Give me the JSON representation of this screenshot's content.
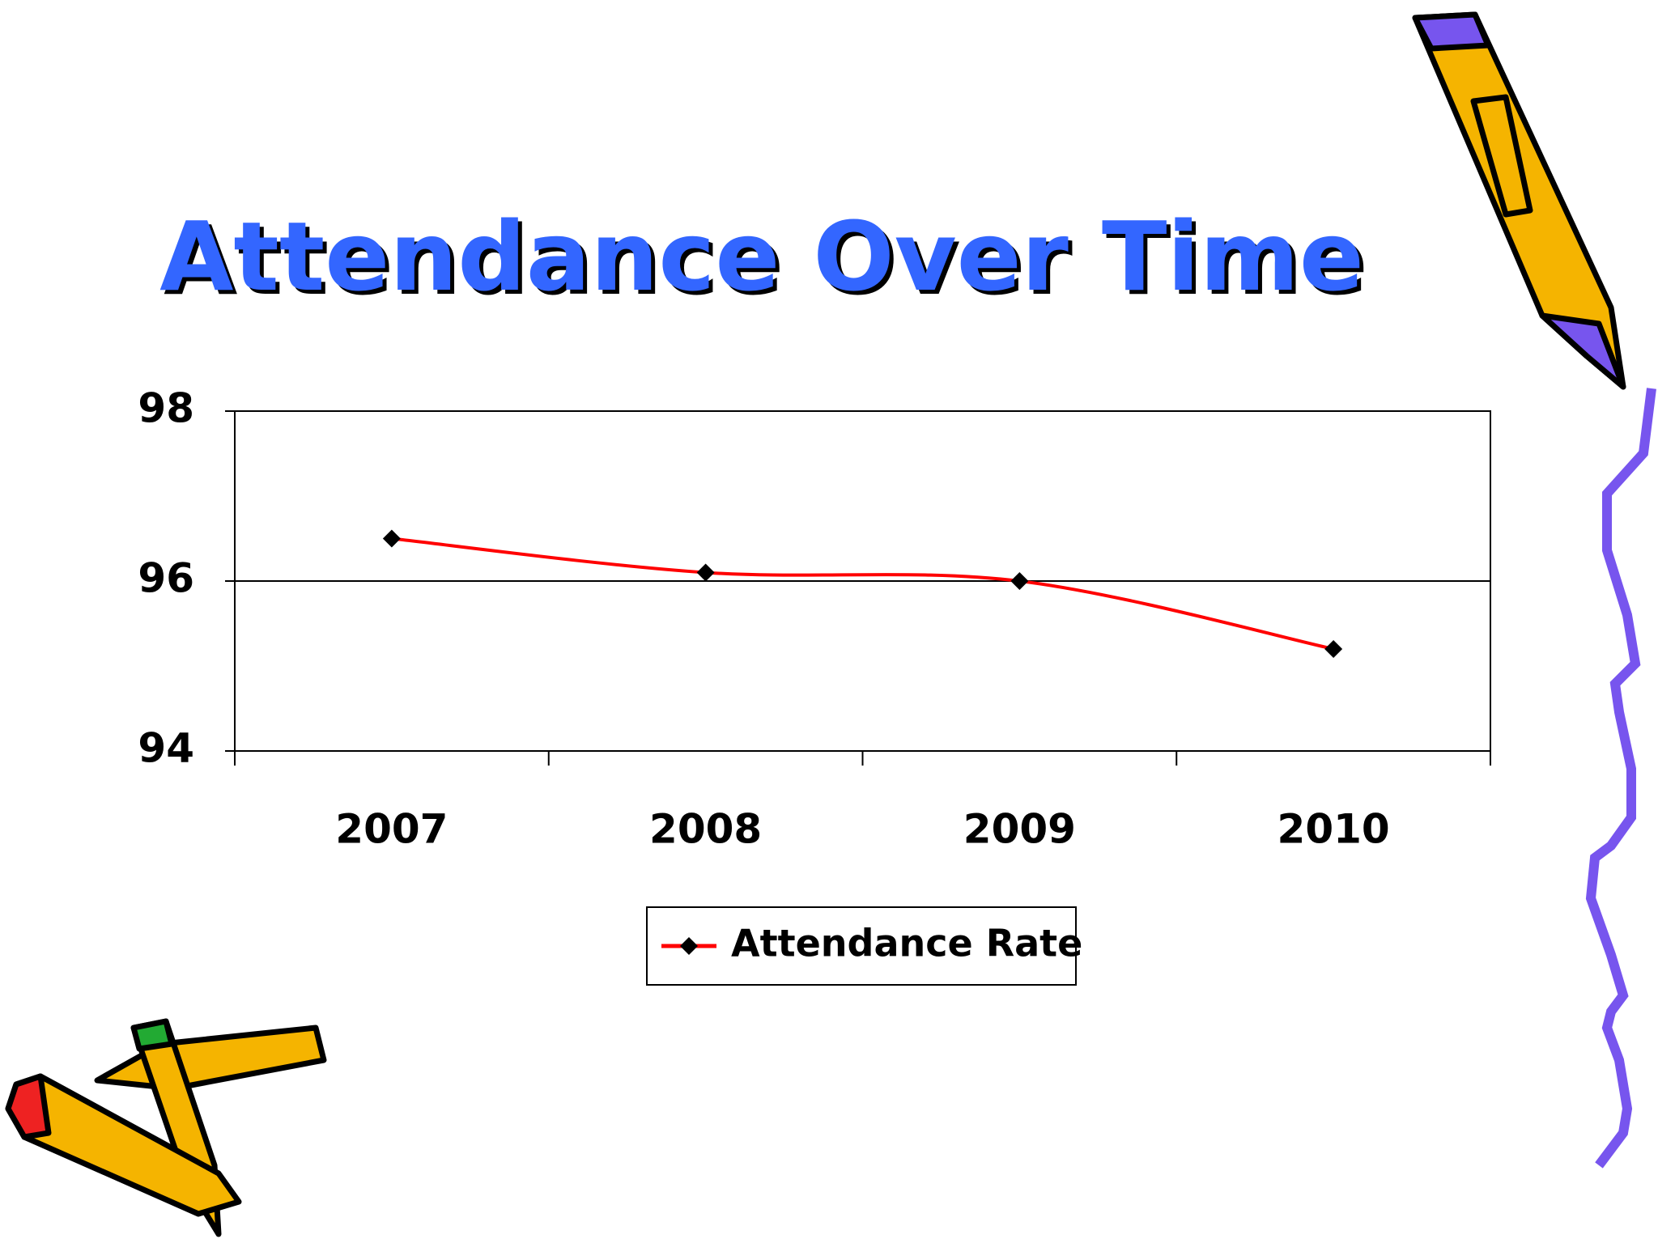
{
  "chart_data": {
    "type": "line",
    "title": "Attendance Over Time",
    "categories": [
      "2007",
      "2008",
      "2009",
      "2010"
    ],
    "series": [
      {
        "name": "Attendance Rate",
        "color": "#ff0000",
        "values": [
          96.5,
          96.1,
          96.0,
          95.2
        ]
      }
    ],
    "ylim": [
      94,
      98
    ],
    "yticks": [
      94,
      96,
      98
    ],
    "grid": true,
    "smooth": true,
    "legend": "bottom",
    "title_color": "#3366ff",
    "marker_color": "#000000"
  }
}
